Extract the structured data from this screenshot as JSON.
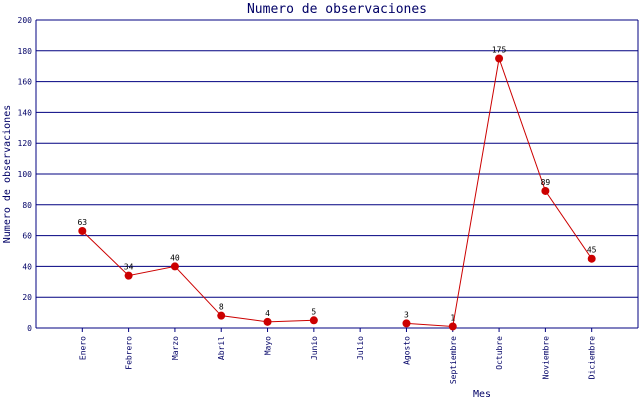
{
  "chart_data": {
    "type": "line",
    "title": "Numero de observaciones",
    "x_label": "Mes",
    "y_label": "Numero de observaciones",
    "categories": [
      "Enero",
      "Febrero",
      "Marzo",
      "Abril",
      "Mayo",
      "Junio",
      "Julio",
      "Agosto",
      "Septiembre",
      "Octubre",
      "Noviembre",
      "Diciembre"
    ],
    "values": [
      63,
      34,
      40,
      8,
      4,
      5,
      null,
      3,
      1,
      175,
      89,
      45
    ],
    "color": "#cc0000",
    "grid_color": "#000080",
    "ylim": [
      0,
      200
    ],
    "yticks": [
      0,
      20,
      40,
      60,
      80,
      100,
      120,
      140,
      160,
      180,
      200
    ],
    "grid": true
  }
}
